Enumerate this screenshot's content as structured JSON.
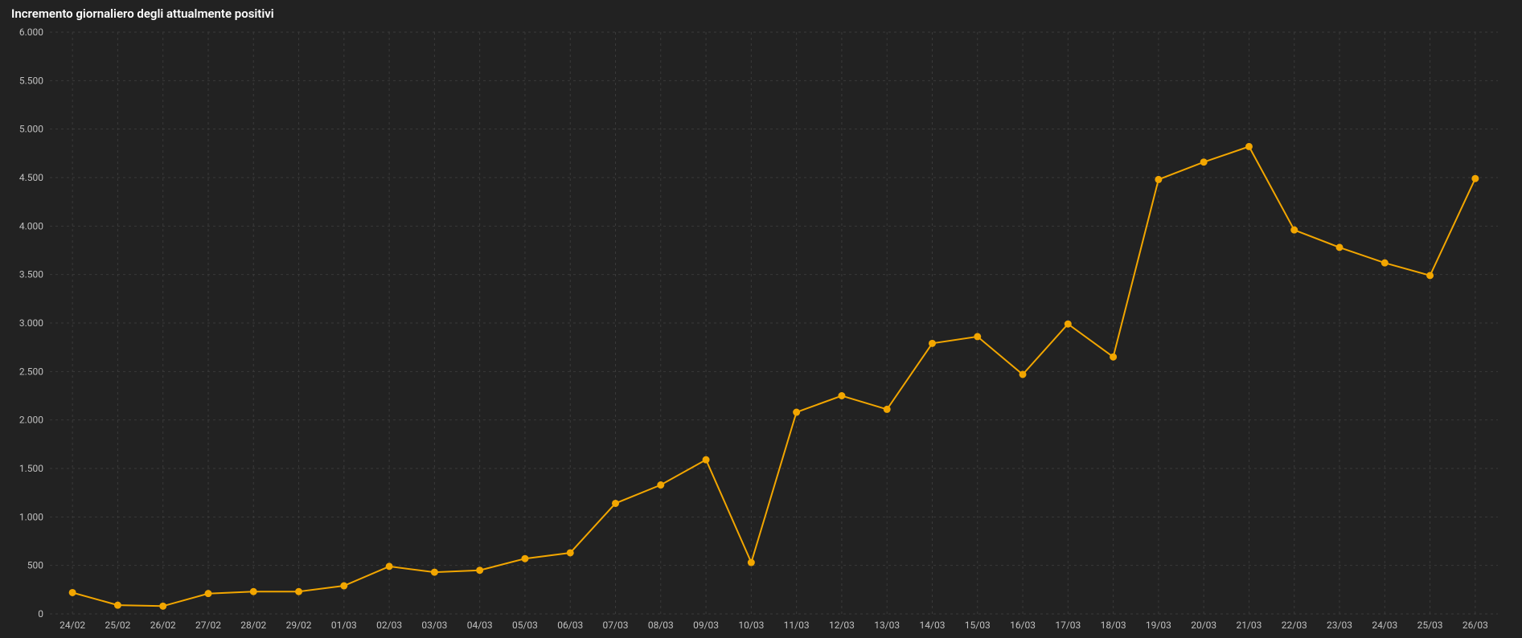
{
  "chart": {
    "type": "line",
    "title": "Incremento giornaliero degli attualmente positivi",
    "title_fontsize": 15,
    "background_color": "#222222",
    "grid_color": "#3a3a3a",
    "grid_dash": "3 4",
    "axis_label_color": "#c0c0c0",
    "axis_label_fontsize": 12,
    "line_color": "#f2a600",
    "line_width": 2,
    "marker_color": "#f2a600",
    "marker_radius": 4,
    "ylim": [
      0,
      6000
    ],
    "ytick_step": 500,
    "yticks_labels": [
      "0",
      "500",
      "1.000",
      "1.500",
      "2.000",
      "2.500",
      "3.000",
      "3.500",
      "4.000",
      "4.500",
      "5.000",
      "5.500",
      "6.000"
    ],
    "categories": [
      "24/02",
      "25/02",
      "26/02",
      "27/02",
      "28/02",
      "29/02",
      "01/03",
      "02/03",
      "03/03",
      "04/03",
      "05/03",
      "06/03",
      "07/03",
      "08/03",
      "09/03",
      "10/03",
      "11/03",
      "12/03",
      "13/03",
      "14/03",
      "15/03",
      "16/03",
      "17/03",
      "18/03",
      "19/03",
      "20/03",
      "21/03",
      "22/03",
      "23/03",
      "24/03",
      "25/03",
      "26/03"
    ],
    "values": [
      220,
      90,
      80,
      210,
      230,
      230,
      290,
      490,
      430,
      450,
      570,
      630,
      1140,
      1330,
      1590,
      530,
      2080,
      2250,
      2110,
      2790,
      2860,
      2470,
      2990,
      2650,
      4480,
      4660,
      4820,
      3960,
      3780,
      3620,
      3490,
      4490
    ]
  }
}
